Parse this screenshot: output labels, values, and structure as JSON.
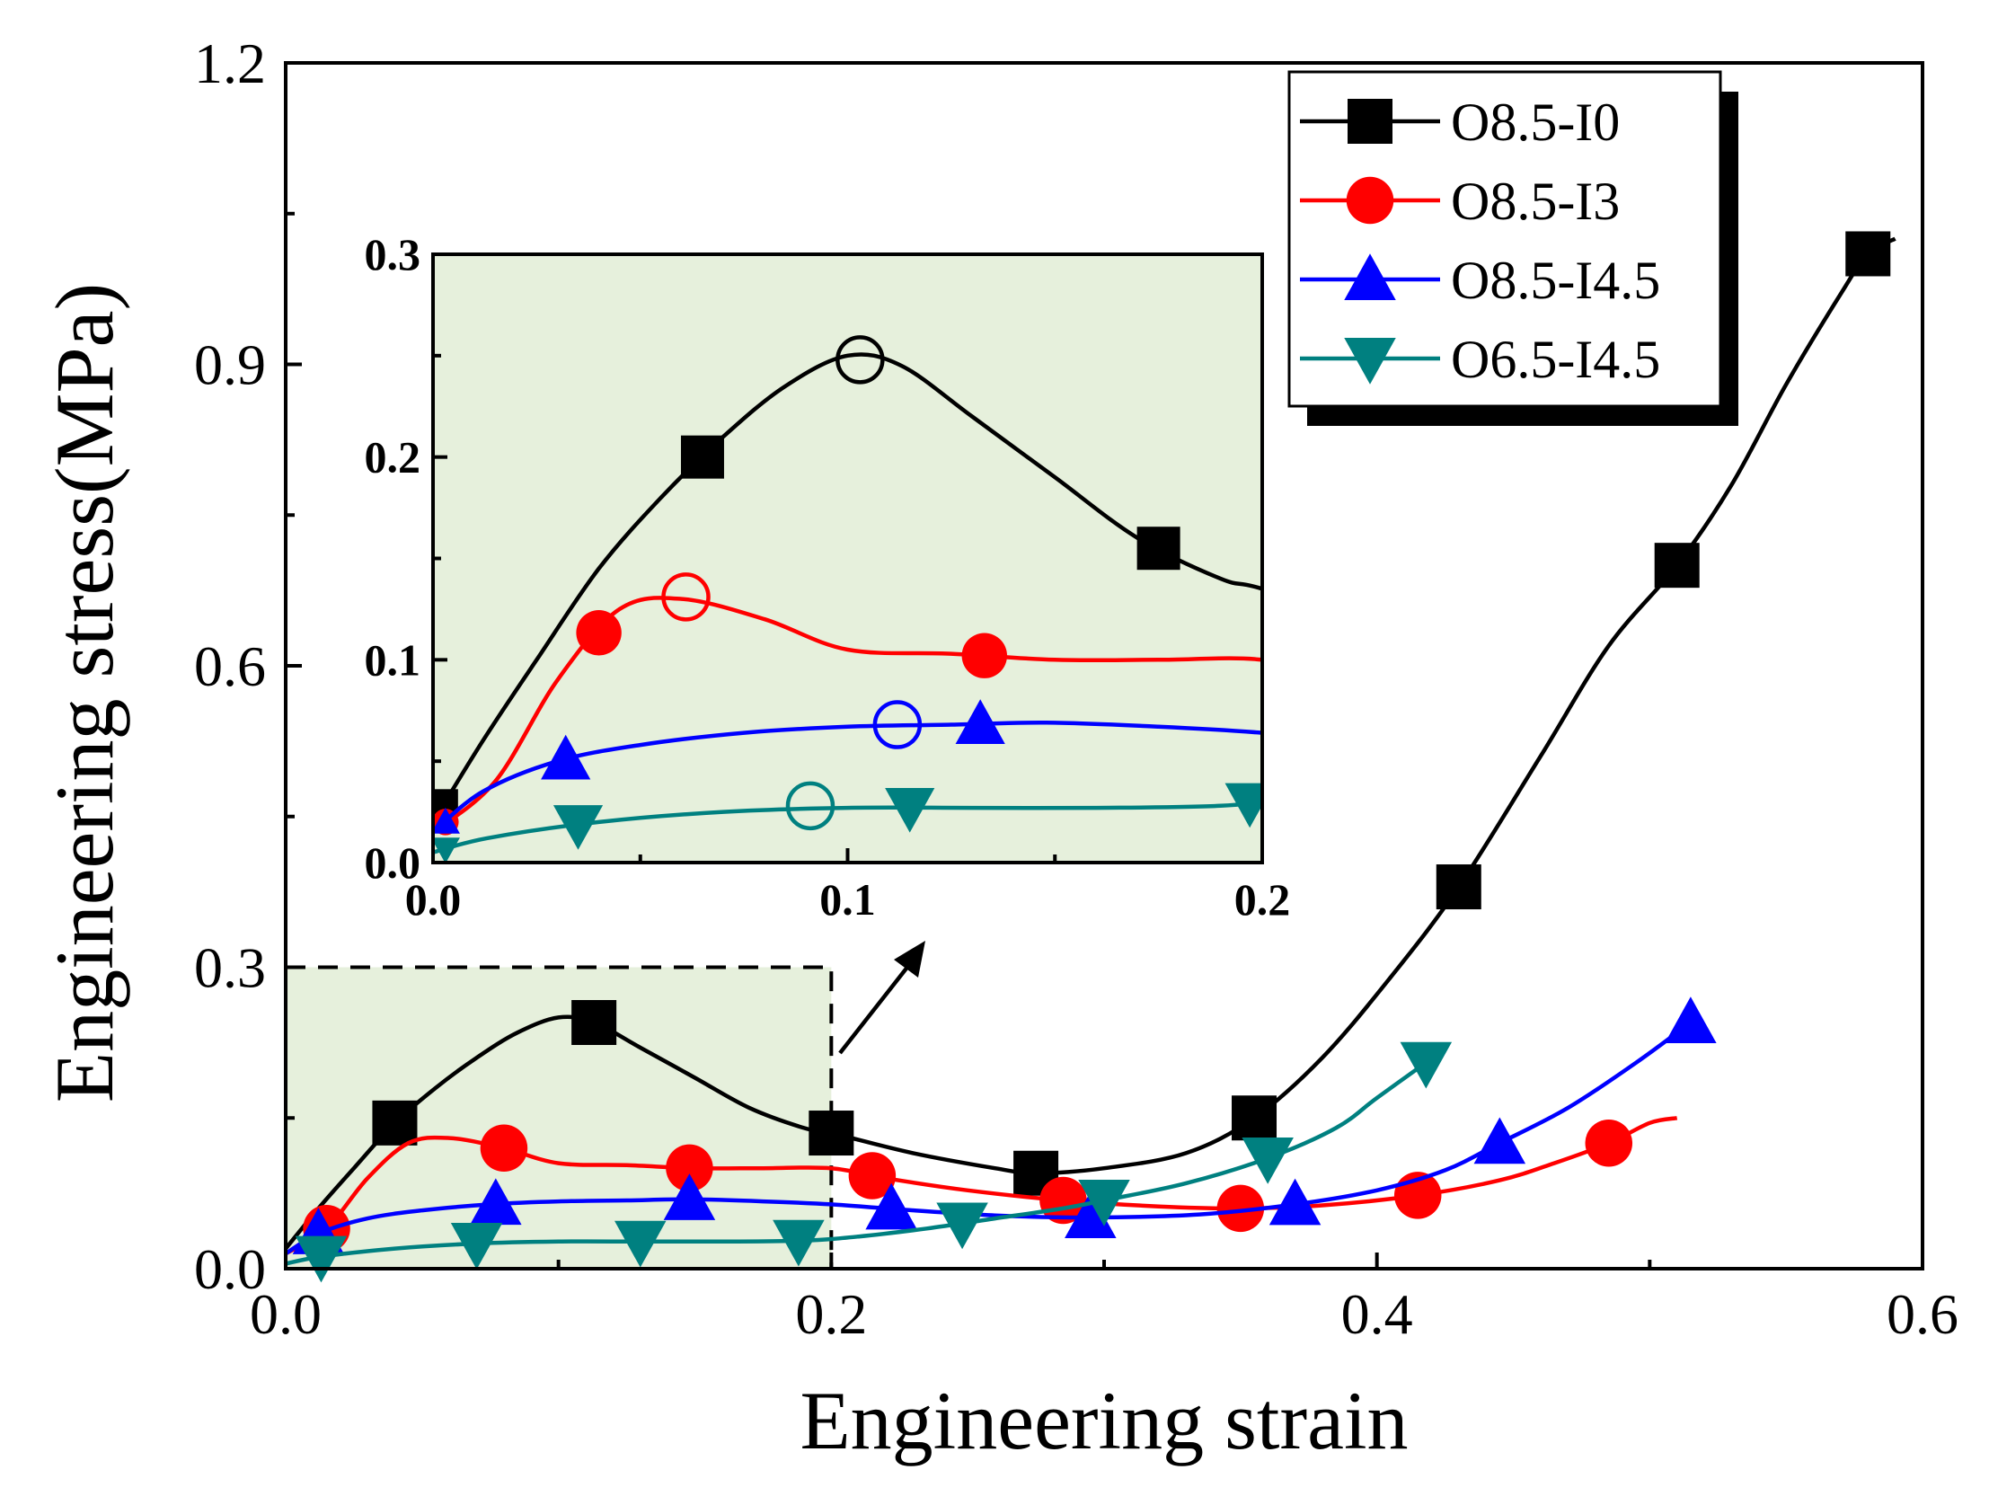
{
  "chart_data": {
    "type": "line",
    "xlabel": "Engineering strain",
    "ylabel": "Engineering stress(MPa)",
    "xlim": [
      0.0,
      0.6
    ],
    "ylim": [
      0.0,
      1.2
    ],
    "xticks": [
      "0.0",
      "0.2",
      "0.4",
      "0.6"
    ],
    "yticks": [
      "0.0",
      "0.3",
      "0.6",
      "0.9",
      "1.2"
    ],
    "legend_position": "top-right",
    "series": [
      {
        "name": "O8.5-I0",
        "color": "#000000",
        "marker": "square",
        "points": [
          [
            0.0,
            0.02
          ],
          [
            0.012,
            0.06
          ],
          [
            0.025,
            0.1
          ],
          [
            0.04,
            0.145
          ],
          [
            0.055,
            0.18
          ],
          [
            0.07,
            0.21
          ],
          [
            0.085,
            0.235
          ],
          [
            0.1,
            0.25
          ],
          [
            0.113,
            0.245
          ],
          [
            0.13,
            0.22
          ],
          [
            0.15,
            0.19
          ],
          [
            0.17,
            0.16
          ],
          [
            0.19,
            0.14
          ],
          [
            0.2,
            0.135
          ],
          [
            0.23,
            0.115
          ],
          [
            0.26,
            0.1
          ],
          [
            0.275,
            0.095
          ],
          [
            0.3,
            0.1
          ],
          [
            0.33,
            0.115
          ],
          [
            0.355,
            0.15
          ],
          [
            0.38,
            0.21
          ],
          [
            0.405,
            0.29
          ],
          [
            0.43,
            0.38
          ],
          [
            0.46,
            0.51
          ],
          [
            0.485,
            0.62
          ],
          [
            0.51,
            0.7
          ],
          [
            0.53,
            0.78
          ],
          [
            0.55,
            0.88
          ],
          [
            0.57,
            0.97
          ],
          [
            0.58,
            1.01
          ],
          [
            0.59,
            1.025
          ]
        ],
        "markers_x": [
          0.04,
          0.113,
          0.2,
          0.275,
          0.355,
          0.43,
          0.51,
          0.58
        ]
      },
      {
        "name": "O8.5-I3",
        "color": "#ff0000",
        "marker": "circle",
        "points": [
          [
            0.0,
            0.015
          ],
          [
            0.015,
            0.04
          ],
          [
            0.03,
            0.09
          ],
          [
            0.045,
            0.125
          ],
          [
            0.06,
            0.13
          ],
          [
            0.08,
            0.12
          ],
          [
            0.1,
            0.105
          ],
          [
            0.125,
            0.103
          ],
          [
            0.15,
            0.1
          ],
          [
            0.175,
            0.1
          ],
          [
            0.2,
            0.1
          ],
          [
            0.22,
            0.09
          ],
          [
            0.25,
            0.078
          ],
          [
            0.285,
            0.068
          ],
          [
            0.32,
            0.062
          ],
          [
            0.35,
            0.06
          ],
          [
            0.38,
            0.063
          ],
          [
            0.415,
            0.073
          ],
          [
            0.445,
            0.088
          ],
          [
            0.465,
            0.105
          ],
          [
            0.485,
            0.125
          ],
          [
            0.5,
            0.145
          ],
          [
            0.51,
            0.15
          ]
        ],
        "markers_x": [
          0.015,
          0.08,
          0.148,
          0.215,
          0.285,
          0.35,
          0.415,
          0.485
        ]
      },
      {
        "name": "O8.5-I4.5",
        "color": "#0000ff",
        "marker": "triangle-up",
        "points": [
          [
            0.0,
            0.015
          ],
          [
            0.012,
            0.035
          ],
          [
            0.03,
            0.05
          ],
          [
            0.05,
            0.058
          ],
          [
            0.075,
            0.064
          ],
          [
            0.1,
            0.067
          ],
          [
            0.125,
            0.068
          ],
          [
            0.148,
            0.069
          ],
          [
            0.175,
            0.067
          ],
          [
            0.2,
            0.064
          ],
          [
            0.225,
            0.059
          ],
          [
            0.26,
            0.053
          ],
          [
            0.295,
            0.051
          ],
          [
            0.335,
            0.054
          ],
          [
            0.37,
            0.064
          ],
          [
            0.4,
            0.078
          ],
          [
            0.425,
            0.098
          ],
          [
            0.445,
            0.125
          ],
          [
            0.47,
            0.16
          ],
          [
            0.495,
            0.205
          ],
          [
            0.515,
            0.245
          ]
        ],
        "markers_x": [
          0.012,
          0.077,
          0.148,
          0.222,
          0.295,
          0.37,
          0.445,
          0.515
        ]
      },
      {
        "name": "O6.5-I4.5",
        "color": "#008080",
        "marker": "triangle-down",
        "points": [
          [
            0.0,
            0.005
          ],
          [
            0.013,
            0.012
          ],
          [
            0.04,
            0.02
          ],
          [
            0.07,
            0.025
          ],
          [
            0.1,
            0.027
          ],
          [
            0.13,
            0.027
          ],
          [
            0.16,
            0.027
          ],
          [
            0.19,
            0.028
          ],
          [
            0.21,
            0.032
          ],
          [
            0.235,
            0.04
          ],
          [
            0.26,
            0.05
          ],
          [
            0.285,
            0.06
          ],
          [
            0.3,
            0.068
          ],
          [
            0.33,
            0.085
          ],
          [
            0.36,
            0.11
          ],
          [
            0.385,
            0.14
          ],
          [
            0.4,
            0.17
          ],
          [
            0.418,
            0.205
          ]
        ],
        "markers_x": [
          0.013,
          0.07,
          0.13,
          0.188,
          0.248,
          0.3,
          0.36,
          0.418
        ]
      }
    ],
    "inset": {
      "xlim": [
        0.0,
        0.2
      ],
      "ylim": [
        0.0,
        0.3
      ],
      "xticks": [
        "0.0",
        "0.1",
        "0.2"
      ],
      "yticks": [
        "0.0",
        "0.1",
        "0.2",
        "0.3"
      ],
      "highlight_region": {
        "xlim": [
          0.0,
          0.2
        ],
        "ylim": [
          0.0,
          0.3
        ]
      },
      "peak_points": [
        {
          "series": "O8.5-I0",
          "x": 0.103,
          "y": 0.248
        },
        {
          "series": "O8.5-I3",
          "x": 0.061,
          "y": 0.131
        },
        {
          "series": "O8.5-I4.5",
          "x": 0.112,
          "y": 0.068
        },
        {
          "series": "O6.5-I4.5",
          "x": 0.091,
          "y": 0.028
        }
      ],
      "markers_x": {
        "O8.5-I0": [
          0.065,
          0.175
        ],
        "O8.5-I3": [
          0.04,
          0.133
        ],
        "O8.5-I4.5": [
          0.032,
          0.132
        ],
        "O6.5-I4.5": [
          0.035,
          0.115,
          0.197
        ]
      }
    },
    "colors": {
      "inset_background": "#e6f0dc",
      "axis": "#000000"
    }
  }
}
